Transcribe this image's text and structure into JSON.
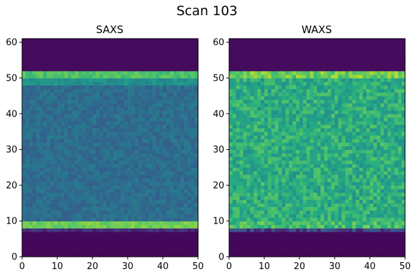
{
  "figure": {
    "title": "Scan 103"
  },
  "colormap": "viridis",
  "colormap_stops": [
    "#440154",
    "#472c7a",
    "#3b518b",
    "#2c718e",
    "#21908d",
    "#27ad81",
    "#5cc863",
    "#aadc32",
    "#fde725"
  ],
  "chart_data": [
    {
      "type": "heatmap",
      "title": "SAXS",
      "xlim": [
        0,
        50
      ],
      "ylim": [
        0,
        61
      ],
      "xticks": [
        0,
        10,
        20,
        30,
        40,
        50
      ],
      "yticks": [
        0,
        10,
        20,
        30,
        40,
        50,
        60
      ],
      "grid": false,
      "colormap": "viridis",
      "description_values": {
        "rows_0_7_level": 0.02,
        "band_8_10_level": 0.78,
        "body_10_49_level": 0.36,
        "band_49_52_level": 0.72,
        "rows_52_61_level": 0.03
      },
      "bands": [
        {
          "y0": 0,
          "y1": 7,
          "level": 0.02
        },
        {
          "y0": 7,
          "y1": 8,
          "level": 0.12
        },
        {
          "y0": 8,
          "y1": 10,
          "level": 0.78
        },
        {
          "y0": 10,
          "y1": 48,
          "level": 0.36
        },
        {
          "y0": 48,
          "y1": 50,
          "level": 0.5
        },
        {
          "y0": 50,
          "y1": 52,
          "level": 0.72
        },
        {
          "y0": 52,
          "y1": 61,
          "level": 0.03
        }
      ]
    },
    {
      "type": "heatmap",
      "title": "WAXS",
      "xlim": [
        0,
        50
      ],
      "ylim": [
        0,
        61
      ],
      "xticks": [
        0,
        10,
        20,
        30,
        40,
        50
      ],
      "yticks": [
        0,
        10,
        20,
        30,
        40,
        50,
        60
      ],
      "grid": false,
      "colormap": "viridis",
      "bands": [
        {
          "y0": 0,
          "y1": 7,
          "level": 0.02
        },
        {
          "y0": 7,
          "y1": 8,
          "level": 0.2
        },
        {
          "y0": 8,
          "y1": 10,
          "level": 0.68
        },
        {
          "y0": 10,
          "y1": 50,
          "level": 0.62
        },
        {
          "y0": 50,
          "y1": 52,
          "level": 0.78
        },
        {
          "y0": 52,
          "y1": 61,
          "level": 0.03
        }
      ]
    }
  ]
}
